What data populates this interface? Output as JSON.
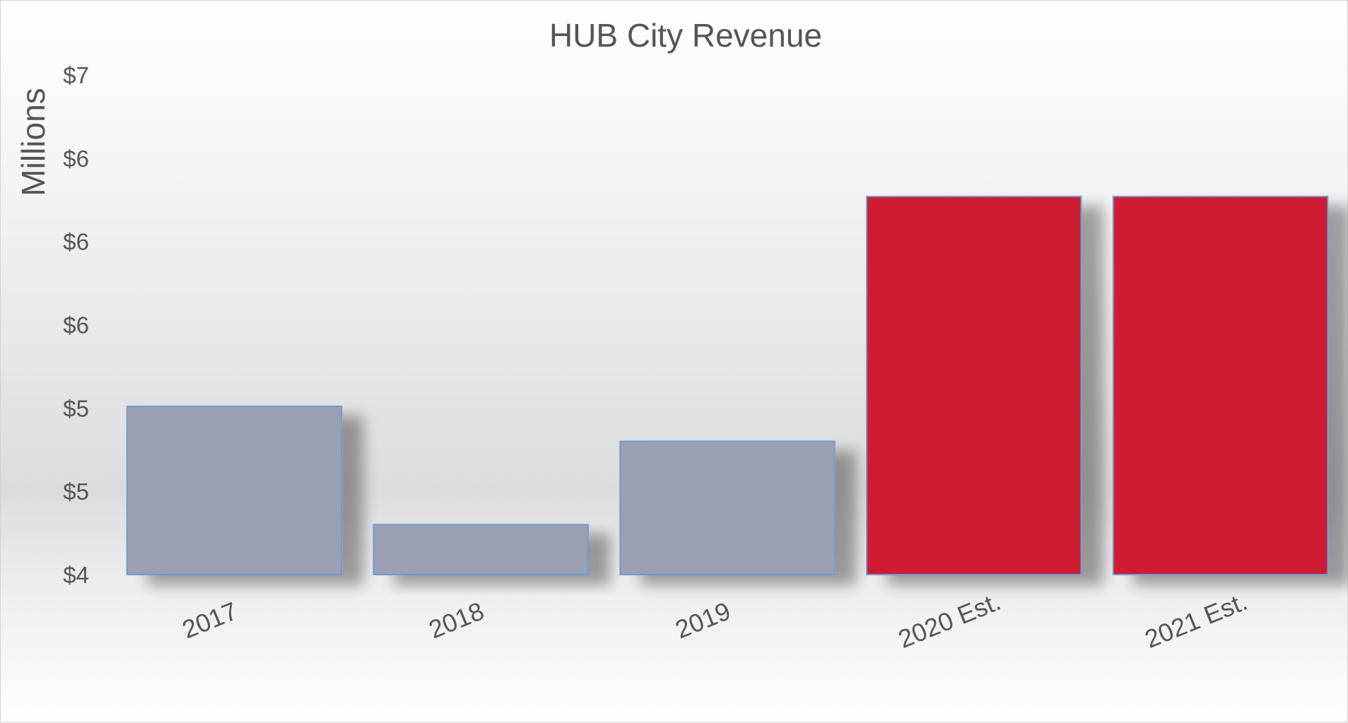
{
  "chart_data": {
    "type": "bar",
    "title": "HUB City Revenue",
    "ylabel": "Millions",
    "xlabel": "",
    "categories": [
      "2017",
      "2018",
      "2019",
      "2020 Est.",
      "2021 Est."
    ],
    "values": [
      5.01,
      4.3,
      4.8,
      6.27,
      6.27
    ],
    "ylim": [
      4,
      7
    ],
    "yticks": [
      4,
      4.5,
      5,
      5.5,
      6,
      6.5,
      7
    ],
    "ytick_labels": [
      "$4",
      "$5",
      "$5",
      "$6",
      "$6",
      "$6",
      "$7"
    ],
    "bar_colors": [
      "#9a9fb2",
      "#9a9fb2",
      "#9a9fb2",
      "#cf1e33",
      "#cf1e33"
    ],
    "bar_edge_color": "#6d9bd4",
    "grid": false,
    "legend": "none"
  }
}
